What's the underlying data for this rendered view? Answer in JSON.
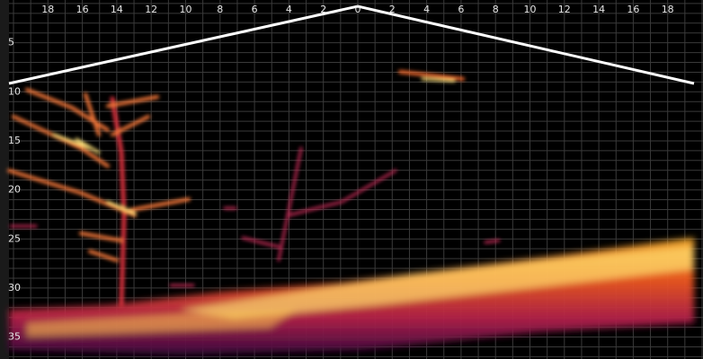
{
  "range_labels": [
    "18",
    "16",
    "14",
    "12",
    "10",
    "8",
    "6",
    "4",
    "2",
    "0",
    "2",
    "4",
    "6",
    "8",
    "10",
    "12",
    "14",
    "16",
    "18"
  ],
  "depth_labels": [
    "5",
    "10",
    "15",
    "20",
    "25",
    "30",
    "35"
  ]
}
